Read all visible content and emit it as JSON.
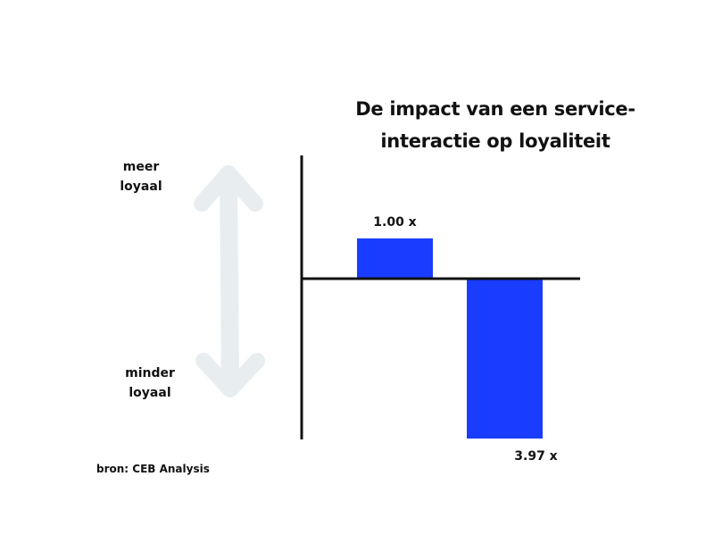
{
  "title": {
    "line1": "De impact van een service-",
    "line2": "interactie op loyaliteit"
  },
  "scale_labels": {
    "top": {
      "line1": "meer",
      "line2": "loyaal"
    },
    "bottom": {
      "line1": "minder",
      "line2": "loyaal"
    }
  },
  "source": "bron: CEB Analysis",
  "colors": {
    "bar": "#1a3cff",
    "arrow": "#e8edf0",
    "axis": "#111111"
  },
  "icons": {
    "arrow": "double-headed-vertical-arrow"
  },
  "chart_data": {
    "type": "bar",
    "categories": [
      "",
      ""
    ],
    "values": [
      1.0,
      -3.97
    ],
    "data_labels": [
      "1.00 x",
      "3.97 x"
    ],
    "ylim": [
      -3.97,
      3.0
    ],
    "grid": false
  }
}
